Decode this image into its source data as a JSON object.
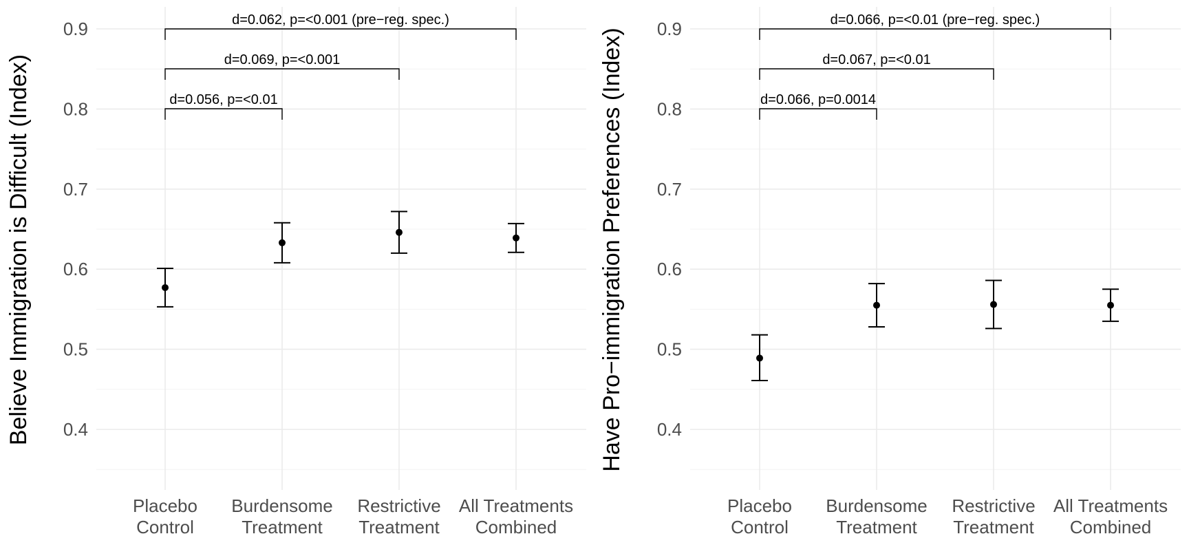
{
  "chart_data": [
    {
      "type": "errorbar",
      "ylabel": "Believe Immigration is Difficult (Index)",
      "xlabel": "",
      "categories": [
        "Placebo\nControl",
        "Burdensome\nTreatment",
        "Restrictive\nTreatment",
        "All Treatments\nCombined"
      ],
      "ylim": [
        0.34,
        0.92
      ],
      "yticks": [
        0.4,
        0.5,
        0.6,
        0.7,
        0.8,
        0.9
      ],
      "grid": true,
      "series": [
        {
          "values": [
            0.577,
            0.633,
            0.646,
            0.639
          ],
          "lower": [
            0.553,
            0.608,
            0.62,
            0.621
          ],
          "upper": [
            0.601,
            0.658,
            0.672,
            0.657
          ]
        }
      ],
      "comparisons": [
        {
          "from": 0,
          "to": 3,
          "label": "d=0.062, p=<0.001 (pre−reg. spec.)"
        },
        {
          "from": 0,
          "to": 2,
          "label": "d=0.069, p=<0.001"
        },
        {
          "from": 0,
          "to": 1,
          "label": "d=0.056, p=<0.01"
        }
      ]
    },
    {
      "type": "errorbar",
      "ylabel": "Have Pro−immigration Preferences (Index)",
      "xlabel": "",
      "categories": [
        "Placebo\nControl",
        "Burdensome\nTreatment",
        "Restrictive\nTreatment",
        "All Treatments\nCombined"
      ],
      "ylim": [
        0.34,
        0.92
      ],
      "yticks": [
        0.4,
        0.5,
        0.6,
        0.7,
        0.8,
        0.9
      ],
      "grid": true,
      "series": [
        {
          "values": [
            0.489,
            0.555,
            0.556,
            0.555
          ],
          "lower": [
            0.461,
            0.528,
            0.526,
            0.535
          ],
          "upper": [
            0.518,
            0.582,
            0.586,
            0.575
          ]
        }
      ],
      "comparisons": [
        {
          "from": 0,
          "to": 3,
          "label": "d=0.066, p=<0.01 (pre−reg. spec.)"
        },
        {
          "from": 0,
          "to": 2,
          "label": "d=0.067, p=<0.01"
        },
        {
          "from": 0,
          "to": 1,
          "label": "d=0.066, p=0.0014"
        }
      ]
    }
  ]
}
